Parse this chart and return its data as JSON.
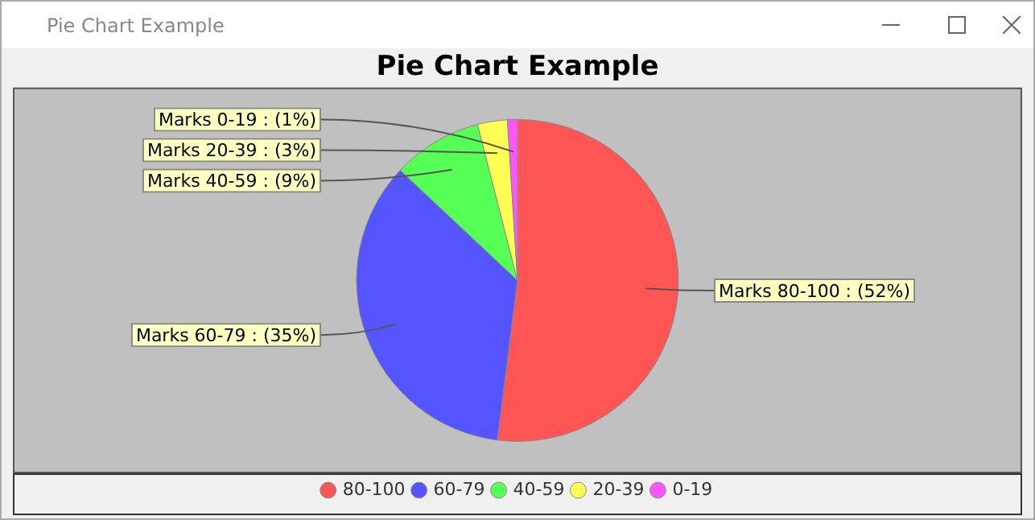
{
  "chart_data": {
    "type": "pie",
    "title": "Pie Chart Example",
    "annotations": [
      "Pie Chart Example"
    ],
    "categories": [
      "80-100",
      "60-79",
      "40-59",
      "20-39",
      "0-19"
    ],
    "values": [
      52,
      35,
      9,
      3,
      1
    ],
    "colors": [
      "#ff5555",
      "#5555ff",
      "#55ff55",
      "#ffff55",
      "#ff55ff"
    ],
    "value_labels": [
      "Marks 80-100 : (52%)",
      "Marks 60-79 : (35%)",
      "Marks 40-59 : (9%)",
      "Marks 20-39 : (3%)",
      "Marks 0-19 : (1%)"
    ],
    "legend": "bottom"
  }
}
